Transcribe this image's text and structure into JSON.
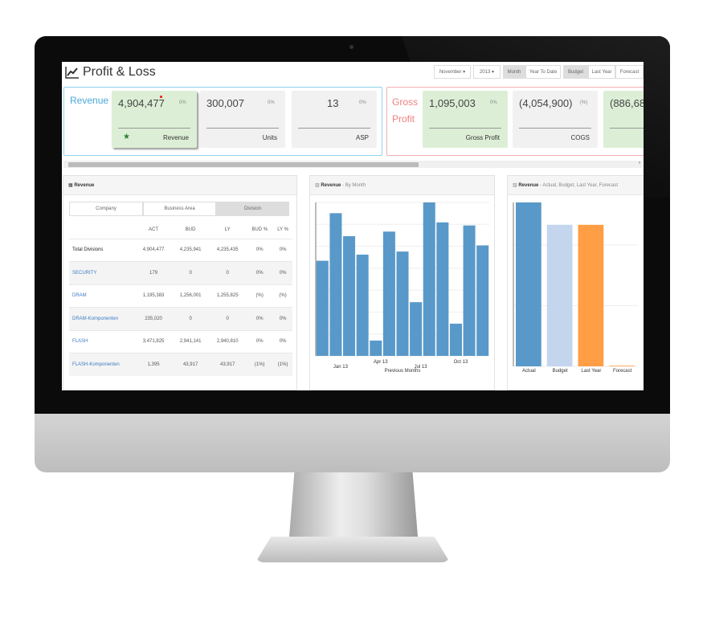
{
  "header": {
    "title": "Profit & Loss",
    "month_select": "November",
    "year_select": "2013",
    "period_buttons": [
      {
        "label": "Month",
        "active": true
      },
      {
        "label": "Year To Date",
        "active": false
      }
    ],
    "compare_buttons": [
      {
        "label": "Budget",
        "active": true
      },
      {
        "label": "Last Year",
        "active": false
      },
      {
        "label": "Forecast",
        "active": false
      }
    ]
  },
  "kpi_groups": [
    {
      "title": "Revenue",
      "color": "#4aa8d8",
      "tiles": [
        {
          "value": "4,904,477",
          "pct": "0%",
          "label": "Revenue",
          "highlight": true,
          "icon": "star-icon"
        },
        {
          "value": "300,007",
          "pct": "0%",
          "label": "Units"
        },
        {
          "value": "13",
          "pct": "0%",
          "label": "ASP"
        }
      ]
    },
    {
      "title": "Gross Profit",
      "color": "#f08080",
      "tiles": [
        {
          "value": "1,095,003",
          "pct": "0%",
          "label": "Gross Profit",
          "highlight": true
        },
        {
          "value": "(4,054,900)",
          "pct": "(%)",
          "label": "COGS"
        },
        {
          "value": "(886,68",
          "pct": "",
          "label": "",
          "highlight": true
        }
      ]
    }
  ],
  "table_panel": {
    "title": "Revenue",
    "tabs": [
      {
        "label": "Company",
        "active": false
      },
      {
        "label": "Business Area",
        "active": false
      },
      {
        "label": "Division",
        "active": true
      }
    ],
    "columns": [
      "",
      "ACT",
      "BUD",
      "LY",
      "BUD %",
      "LY %"
    ],
    "rows": [
      [
        "Total Divisions",
        "4,904,477",
        "4,235,941",
        "4,235,435",
        "0%",
        "0%"
      ],
      [
        "SECURITY",
        "179",
        "0",
        "0",
        "0%",
        "0%"
      ],
      [
        "DRAM",
        "1,195,383",
        "1,256,001",
        "1,255,825",
        "(%)",
        "(%)"
      ],
      [
        "DRAM-Komponenten",
        "235,020",
        "0",
        "0",
        "0%",
        "0%"
      ],
      [
        "FLASH",
        "3,471,825",
        "2,941,141",
        "2,940,810",
        "0%",
        "0%"
      ],
      [
        "FLASH-Komponenten",
        "1,395",
        "43,917",
        "43,917",
        "(1%)",
        "(1%)"
      ]
    ]
  },
  "chart_data": [
    {
      "type": "bar",
      "title": "Revenue",
      "subtitle": "By Month",
      "xlabel": "Previous Months",
      "tick_labels": [
        "Jan 13",
        "Apr 13",
        "Jul 13",
        "Oct 13"
      ],
      "values": [
        62,
        93,
        78,
        66,
        10,
        81,
        68,
        35,
        100,
        87,
        21,
        85,
        72
      ],
      "ylim": [
        0,
        100
      ],
      "color": "#5899c9",
      "grid": true
    },
    {
      "type": "bar",
      "title": "Revenue",
      "subtitle": "Actual, Budget, Last Year, Forecast",
      "categories": [
        "Actual",
        "Budget",
        "Last Year",
        "Forecast"
      ],
      "values": [
        4904477,
        4235941,
        4235435,
        0
      ],
      "colors": [
        "#5899c9",
        "#c3d6ee",
        "#ff9e45",
        "#ff9e45"
      ],
      "ylim": [
        0,
        4904477
      ],
      "grid": true
    }
  ]
}
